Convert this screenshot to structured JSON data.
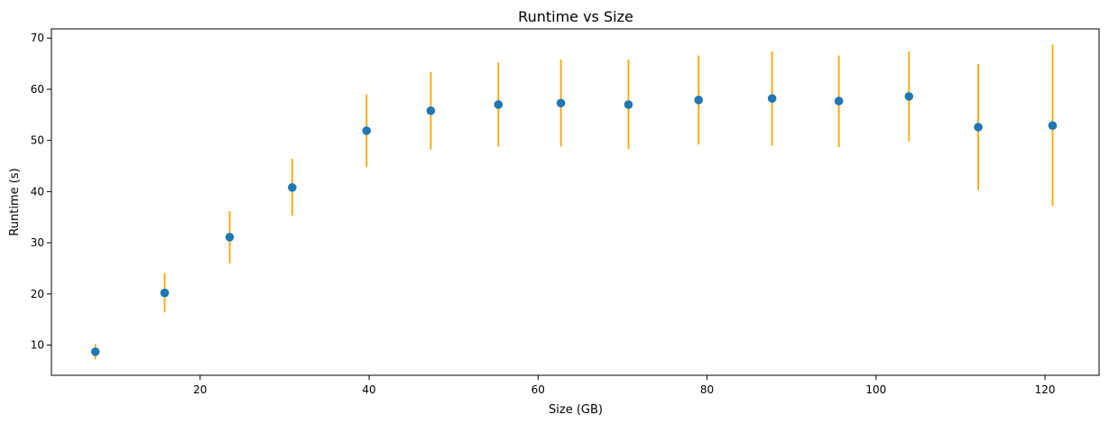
{
  "chart_data": {
    "type": "scatter",
    "title": "Runtime vs Size",
    "xlabel": "Size (GB)",
    "ylabel": "Runtime (s)",
    "xlim": [
      2.4,
      126.4
    ],
    "ylim": [
      4.1,
      71.8
    ],
    "xticks": [
      20,
      40,
      60,
      80,
      100,
      120
    ],
    "yticks": [
      10,
      20,
      30,
      40,
      50,
      60,
      70
    ],
    "grid": false,
    "colors": {
      "points": "#1f77b4",
      "error_bars": "#ffa500"
    },
    "points": [
      {
        "x": 7.6,
        "y": 8.7,
        "y_low": 7.2,
        "y_high": 10.2
      },
      {
        "x": 15.8,
        "y": 20.2,
        "y_low": 16.4,
        "y_high": 24.1
      },
      {
        "x": 23.5,
        "y": 31.1,
        "y_low": 26.0,
        "y_high": 36.2
      },
      {
        "x": 30.9,
        "y": 40.8,
        "y_low": 35.3,
        "y_high": 46.4
      },
      {
        "x": 39.7,
        "y": 51.9,
        "y_low": 44.8,
        "y_high": 59.0
      },
      {
        "x": 47.3,
        "y": 55.8,
        "y_low": 48.2,
        "y_high": 63.4
      },
      {
        "x": 55.3,
        "y": 57.0,
        "y_low": 48.8,
        "y_high": 65.2
      },
      {
        "x": 62.7,
        "y": 57.3,
        "y_low": 48.8,
        "y_high": 65.8
      },
      {
        "x": 70.7,
        "y": 57.0,
        "y_low": 48.3,
        "y_high": 65.8
      },
      {
        "x": 79.0,
        "y": 57.9,
        "y_low": 49.2,
        "y_high": 66.6
      },
      {
        "x": 87.7,
        "y": 58.2,
        "y_low": 49.0,
        "y_high": 67.4
      },
      {
        "x": 95.6,
        "y": 57.7,
        "y_low": 48.7,
        "y_high": 66.6
      },
      {
        "x": 103.9,
        "y": 58.6,
        "y_low": 49.8,
        "y_high": 67.4
      },
      {
        "x": 112.1,
        "y": 52.6,
        "y_low": 40.3,
        "y_high": 64.9
      },
      {
        "x": 120.9,
        "y": 52.9,
        "y_low": 37.2,
        "y_high": 68.7
      }
    ]
  }
}
